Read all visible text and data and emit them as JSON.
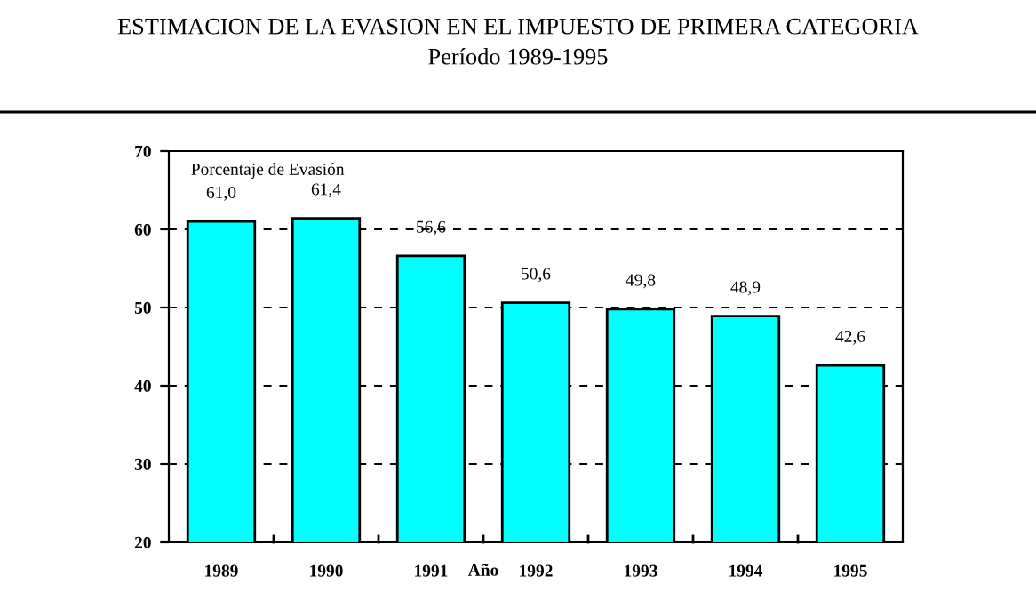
{
  "chart_data": {
    "type": "bar",
    "title": "ESTIMACION DE LA EVASION EN EL IMPUESTO DE PRIMERA CATEGORIA",
    "subtitle": "Período 1989-1995",
    "ylabel": "Porcentaje de Evasión",
    "xlabel": "Año",
    "categories": [
      "1989",
      "1990",
      "1991",
      "1992",
      "1993",
      "1994",
      "1995"
    ],
    "values": [
      61.0,
      61.4,
      56.6,
      50.6,
      49.8,
      48.9,
      42.6
    ],
    "value_labels": [
      "61,0",
      "61,4",
      "56,6",
      "50,6",
      "49,8",
      "48,9",
      "42,6"
    ],
    "color": "#00ffff",
    "ylim": [
      20,
      70
    ],
    "yticks": [
      20,
      30,
      40,
      50,
      60,
      70
    ],
    "grid": "y",
    "legend": false
  }
}
